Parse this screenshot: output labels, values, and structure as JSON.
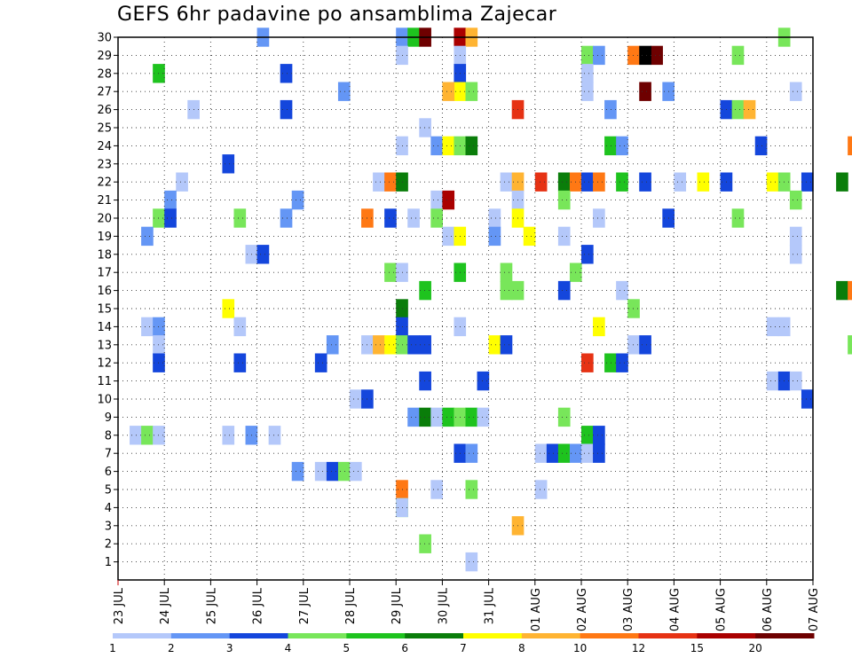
{
  "chart_data": {
    "type": "heatmap",
    "title": "GEFS 6hr padavine po ansamblima Zajecar",
    "xlabel": "",
    "ylabel": "",
    "x_ticks": [
      "23 JUL",
      "24 JUL",
      "25 JUL",
      "26 JUL",
      "27 JUL",
      "28 JUL",
      "29 JUL",
      "30 JUL",
      "31 JUL",
      "01 AUG",
      "02 AUG",
      "03 AUG",
      "04 AUG",
      "05 AUG",
      "06 AUG",
      "07 AUG"
    ],
    "y_ticks": [
      "1",
      "2",
      "3",
      "4",
      "5",
      "6",
      "7",
      "8",
      "9",
      "10",
      "11",
      "12",
      "13",
      "14",
      "15",
      "16",
      "17",
      "18",
      "19",
      "20",
      "21",
      "22",
      "23",
      "24",
      "25",
      "26",
      "27",
      "28",
      "29",
      "30"
    ],
    "x_range_days": [
      "23 JUL",
      "07 AUG"
    ],
    "y_range": [
      0,
      30
    ],
    "grid": true,
    "colorbar": {
      "labels": [
        "1",
        "2",
        "3",
        "4",
        "5",
        "6",
        "7",
        "8",
        "10",
        "12",
        "15",
        "20"
      ],
      "colors": [
        "#b4c8fa",
        "#6496f5",
        "#1446dc",
        "#78e65a",
        "#1ec31e",
        "#0a7d0a",
        "#ffff00",
        "#ffb432",
        "#ff7814",
        "#e63214",
        "#aa0000",
        "#6e0000"
      ]
    },
    "cells": [
      [
        30,
        12,
        1
      ],
      [
        30,
        24,
        1
      ],
      [
        30,
        25,
        4
      ],
      [
        30,
        26,
        11
      ],
      [
        30,
        29,
        10
      ],
      [
        30,
        30,
        7
      ],
      [
        29,
        29,
        0
      ],
      [
        30,
        57,
        3
      ],
      [
        29,
        53,
        3
      ],
      [
        29,
        40,
        3
      ],
      [
        29,
        24,
        0
      ],
      [
        29,
        41,
        1
      ],
      [
        29,
        44,
        8
      ],
      [
        29,
        46,
        11
      ],
      [
        29,
        45,
        12
      ],
      [
        28,
        29,
        2
      ],
      [
        28,
        40,
        0
      ],
      [
        28,
        14,
        2
      ],
      [
        28,
        3,
        4
      ],
      [
        27,
        19,
        1
      ],
      [
        27,
        29,
        6
      ],
      [
        27,
        40,
        0
      ],
      [
        27,
        45,
        11
      ],
      [
        27,
        47,
        1
      ],
      [
        27,
        58,
        0
      ],
      [
        27,
        28,
        7
      ],
      [
        27,
        30,
        3
      ],
      [
        26,
        6,
        0
      ],
      [
        26,
        14,
        2
      ],
      [
        26,
        34,
        9
      ],
      [
        26,
        42,
        1
      ],
      [
        26,
        52,
        2
      ],
      [
        26,
        53,
        3
      ],
      [
        26,
        54,
        7
      ],
      [
        25,
        26,
        0
      ],
      [
        24,
        24,
        0
      ],
      [
        24,
        27,
        1
      ],
      [
        24,
        28,
        6
      ],
      [
        24,
        29,
        3
      ],
      [
        24,
        30,
        5
      ],
      [
        24,
        42,
        4
      ],
      [
        24,
        43,
        1
      ],
      [
        24,
        63,
        8
      ],
      [
        24,
        55,
        2
      ],
      [
        23,
        9,
        2
      ],
      [
        22,
        5,
        0
      ],
      [
        22,
        22,
        0
      ],
      [
        22,
        23,
        8
      ],
      [
        22,
        24,
        5
      ],
      [
        22,
        33,
        0
      ],
      [
        22,
        34,
        7
      ],
      [
        22,
        36,
        9
      ],
      [
        22,
        38,
        5
      ],
      [
        22,
        39,
        8
      ],
      [
        22,
        40,
        2
      ],
      [
        22,
        41,
        8
      ],
      [
        22,
        43,
        4
      ],
      [
        22,
        45,
        2
      ],
      [
        22,
        48,
        0
      ],
      [
        22,
        50,
        6
      ],
      [
        22,
        52,
        2
      ],
      [
        22,
        56,
        6
      ],
      [
        22,
        57,
        3
      ],
      [
        22,
        59,
        2
      ],
      [
        22,
        62,
        5
      ],
      [
        22,
        65,
        2
      ],
      [
        22,
        66,
        9
      ],
      [
        21,
        4,
        1
      ],
      [
        21,
        15,
        1
      ],
      [
        21,
        27,
        0
      ],
      [
        21,
        28,
        10
      ],
      [
        21,
        34,
        0
      ],
      [
        21,
        38,
        3
      ],
      [
        21,
        58,
        3
      ],
      [
        21,
        65,
        4
      ],
      [
        21,
        66,
        9
      ],
      [
        21,
        67,
        1
      ],
      [
        20,
        3,
        3
      ],
      [
        20,
        4,
        2
      ],
      [
        20,
        10,
        3
      ],
      [
        20,
        14,
        1
      ],
      [
        20,
        21,
        8
      ],
      [
        20,
        23,
        2
      ],
      [
        20,
        25,
        0
      ],
      [
        20,
        27,
        3
      ],
      [
        20,
        32,
        0
      ],
      [
        20,
        34,
        6
      ],
      [
        20,
        41,
        0
      ],
      [
        20,
        47,
        2
      ],
      [
        20,
        53,
        3
      ],
      [
        20,
        72,
        0
      ],
      [
        20,
        73,
        2
      ],
      [
        19,
        2,
        1
      ],
      [
        19,
        28,
        0
      ],
      [
        19,
        29,
        6
      ],
      [
        19,
        32,
        1
      ],
      [
        19,
        35,
        6
      ],
      [
        19,
        38,
        0
      ],
      [
        19,
        58,
        0
      ],
      [
        18,
        58,
        0
      ],
      [
        18,
        40,
        2
      ],
      [
        18,
        11,
        0
      ],
      [
        18,
        12,
        2
      ],
      [
        17,
        29,
        4
      ],
      [
        17,
        23,
        3
      ],
      [
        17,
        24,
        0
      ],
      [
        17,
        33,
        3
      ],
      [
        17,
        39,
        3
      ],
      [
        16,
        26,
        4
      ],
      [
        16,
        33,
        3
      ],
      [
        16,
        34,
        3
      ],
      [
        16,
        62,
        5
      ],
      [
        16,
        38,
        2
      ],
      [
        16,
        63,
        8
      ],
      [
        16,
        43,
        0
      ],
      [
        15,
        24,
        5
      ],
      [
        15,
        9,
        6
      ],
      [
        15,
        44,
        3
      ],
      [
        15,
        71,
        0
      ],
      [
        15,
        72,
        0
      ],
      [
        15,
        73,
        3
      ],
      [
        14,
        29,
        0
      ],
      [
        14,
        24,
        2
      ],
      [
        14,
        10,
        0
      ],
      [
        14,
        41,
        6
      ],
      [
        14,
        56,
        0
      ],
      [
        14,
        57,
        0
      ],
      [
        14,
        66,
        9
      ],
      [
        14,
        67,
        1
      ],
      [
        14,
        68,
        0
      ],
      [
        14,
        2,
        0
      ],
      [
        14,
        3,
        1
      ],
      [
        13,
        3,
        0
      ],
      [
        13,
        18,
        1
      ],
      [
        13,
        21,
        0
      ],
      [
        13,
        22,
        7
      ],
      [
        13,
        23,
        6
      ],
      [
        13,
        24,
        3
      ],
      [
        13,
        25,
        2
      ],
      [
        13,
        26,
        2
      ],
      [
        13,
        32,
        6
      ],
      [
        13,
        33,
        2
      ],
      [
        13,
        44,
        0
      ],
      [
        13,
        45,
        2
      ],
      [
        13,
        63,
        3
      ],
      [
        12,
        3,
        2
      ],
      [
        12,
        10,
        2
      ],
      [
        12,
        17,
        2
      ],
      [
        12,
        40,
        9
      ],
      [
        12,
        42,
        4
      ],
      [
        12,
        43,
        2
      ],
      [
        11,
        26,
        2
      ],
      [
        11,
        31,
        2
      ],
      [
        11,
        56,
        0
      ],
      [
        11,
        57,
        2
      ],
      [
        11,
        58,
        0
      ],
      [
        10,
        20,
        0
      ],
      [
        10,
        21,
        2
      ],
      [
        10,
        59,
        2
      ],
      [
        9,
        25,
        1
      ],
      [
        9,
        26,
        5
      ],
      [
        9,
        27,
        0
      ],
      [
        9,
        28,
        4
      ],
      [
        9,
        29,
        3
      ],
      [
        9,
        30,
        4
      ],
      [
        9,
        31,
        0
      ],
      [
        9,
        38,
        3
      ],
      [
        8,
        1,
        0
      ],
      [
        8,
        2,
        3
      ],
      [
        8,
        3,
        0
      ],
      [
        8,
        9,
        0
      ],
      [
        8,
        11,
        1
      ],
      [
        8,
        13,
        0
      ],
      [
        8,
        40,
        4
      ],
      [
        8,
        41,
        2
      ],
      [
        7,
        29,
        2
      ],
      [
        7,
        30,
        1
      ],
      [
        7,
        36,
        0
      ],
      [
        7,
        37,
        2
      ],
      [
        7,
        38,
        4
      ],
      [
        7,
        39,
        1
      ],
      [
        7,
        40,
        0
      ],
      [
        7,
        41,
        2
      ],
      [
        6,
        15,
        1
      ],
      [
        6,
        17,
        0
      ],
      [
        6,
        18,
        2
      ],
      [
        6,
        19,
        3
      ],
      [
        6,
        20,
        0
      ],
      [
        5,
        24,
        8
      ],
      [
        5,
        27,
        0
      ],
      [
        5,
        30,
        3
      ],
      [
        5,
        36,
        0
      ],
      [
        4,
        24,
        3
      ],
      [
        4,
        24,
        0
      ],
      [
        3,
        34,
        7
      ],
      [
        2,
        26,
        3
      ],
      [
        1,
        30,
        0
      ]
    ]
  }
}
